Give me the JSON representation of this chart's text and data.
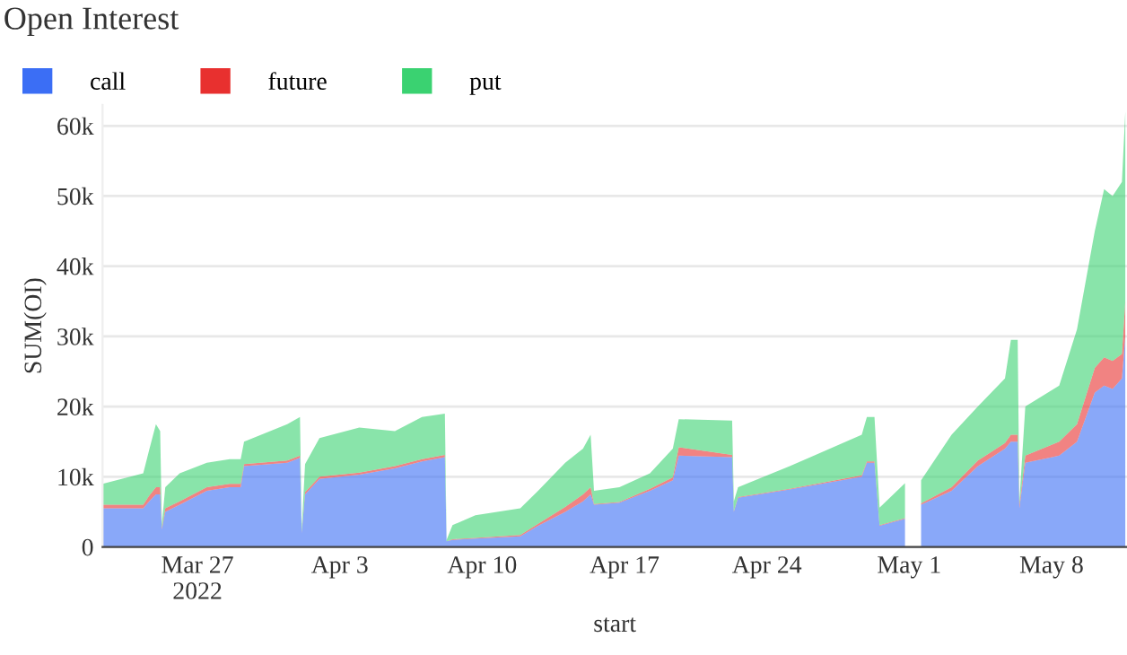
{
  "chart_data": {
    "type": "area",
    "stacked": true,
    "title": "Open Interest",
    "xlabel": "start",
    "ylabel": "SUM(OI)",
    "x": [
      "2022-03-22T08:00",
      "2022-03-24T08:00",
      "2022-03-24T15:00",
      "2022-03-24T23:00",
      "2022-03-25T04:00",
      "2022-03-25T06:00",
      "2022-03-25T10:00",
      "2022-03-26T03:00",
      "2022-03-27T11:00",
      "2022-03-28T14:00",
      "2022-03-29T03:00",
      "2022-03-29T07:00",
      "2022-03-31T10:00",
      "2022-04-01T01:00",
      "2022-04-01T03:00",
      "2022-04-01T07:00",
      "2022-04-02T00:00",
      "2022-04-03T23:00",
      "2022-04-05T17:00",
      "2022-04-07T01:00",
      "2022-04-08T04:00",
      "2022-04-08T06:00",
      "2022-04-08T13:00",
      "2022-04-09T16:00",
      "2022-04-11T21:00",
      "2022-04-12T18:00",
      "2022-04-14T02:00",
      "2022-04-14T23:00",
      "2022-04-15T08:00",
      "2022-04-15T12:00",
      "2022-04-16T18:00",
      "2022-04-18T06:00",
      "2022-04-19T09:00",
      "2022-04-19T16:00",
      "2022-04-22T07:00",
      "2022-04-22T09:00",
      "2022-04-22T14:00",
      "2022-04-25T03:00",
      "2022-04-28T16:00",
      "2022-04-28T22:00",
      "2022-04-29T07:00",
      "2022-04-29T13:00",
      "2022-04-30T19:00",
      "2022-04-30T20:00",
      "2022-05-01T14:00",
      "2022-05-03T02:00",
      "2022-05-04T09:00",
      "2022-05-05T17:00",
      "2022-05-06T00:00",
      "2022-05-06T08:00",
      "2022-05-06T10:00",
      "2022-05-06T17:00",
      "2022-05-08T09:00",
      "2022-05-09T06:00",
      "2022-05-10T03:00",
      "2022-05-10T14:00",
      "2022-05-11T00:00",
      "2022-05-11T11:00",
      "2022-05-11T15:00"
    ],
    "series": [
      {
        "name": "call",
        "color": "#3b6ef5",
        "values": [
          5500,
          5500,
          6500,
          7500,
          7500,
          2500,
          5000,
          6000,
          8000,
          8500,
          8500,
          11500,
          12000,
          12700,
          2000,
          7500,
          9700,
          10300,
          11200,
          12200,
          12800,
          800,
          1000,
          1200,
          1500,
          3000,
          5000,
          6500,
          7500,
          6000,
          6300,
          8000,
          9500,
          13000,
          12800,
          5000,
          7000,
          8200,
          10000,
          12000,
          12000,
          3000,
          4000,
          null,
          6000,
          8000,
          11500,
          14000,
          15000,
          15000,
          5500,
          12000,
          13000,
          15000,
          22000,
          23000,
          22500,
          24000,
          30000
        ]
      },
      {
        "name": "future",
        "color": "#e8302f",
        "values": [
          500,
          500,
          800,
          1000,
          1000,
          200,
          500,
          500,
          500,
          500,
          500,
          300,
          300,
          300,
          100,
          300,
          300,
          300,
          300,
          300,
          300,
          0,
          100,
          100,
          200,
          300,
          700,
          1000,
          1000,
          100,
          100,
          300,
          400,
          1200,
          300,
          100,
          100,
          100,
          200,
          200,
          200,
          100,
          100,
          null,
          200,
          500,
          800,
          800,
          1000,
          1000,
          500,
          1000,
          2000,
          2500,
          3500,
          4000,
          4000,
          3500,
          5000
        ]
      },
      {
        "name": "put",
        "color": "#3ad271",
        "values": [
          3000,
          4500,
          6500,
          9000,
          8000,
          500,
          3000,
          4000,
          3500,
          3500,
          3500,
          3200,
          5200,
          5500,
          500,
          4000,
          5500,
          6400,
          5000,
          6000,
          5900,
          200,
          2000,
          3200,
          3800,
          4700,
          6300,
          6500,
          7500,
          1900,
          2100,
          2200,
          4100,
          4000,
          4900,
          1400,
          1400,
          3200,
          5800,
          6300,
          6300,
          2500,
          5000,
          null,
          3300,
          7500,
          7700,
          9200,
          13500,
          13500,
          500,
          7000,
          8000,
          13500,
          19500,
          24000,
          23500,
          24500,
          27000
        ]
      }
    ],
    "xlim": [
      "2022-03-22T08:00",
      "2022-05-11T17:00"
    ],
    "xticks": [
      {
        "value": "2022-03-27",
        "label": "Mar 27\n2022"
      },
      {
        "value": "2022-04-03",
        "label": "Apr 3"
      },
      {
        "value": "2022-04-10",
        "label": "Apr 10"
      },
      {
        "value": "2022-04-17",
        "label": "Apr 17"
      },
      {
        "value": "2022-04-24",
        "label": "Apr 24"
      },
      {
        "value": "2022-05-01",
        "label": "May 1"
      },
      {
        "value": "2022-05-08",
        "label": "May 8"
      }
    ],
    "ylim": [
      0,
      63000
    ],
    "yticks": [
      0,
      {
        "value": 10000,
        "label": "10k"
      },
      {
        "value": 20000,
        "label": "20k"
      },
      {
        "value": 30000,
        "label": "30k"
      },
      {
        "value": 40000,
        "label": "40k"
      },
      {
        "value": 50000,
        "label": "50k"
      },
      {
        "value": 60000,
        "label": "60k"
      }
    ],
    "grid": "y",
    "legend": "top left"
  }
}
